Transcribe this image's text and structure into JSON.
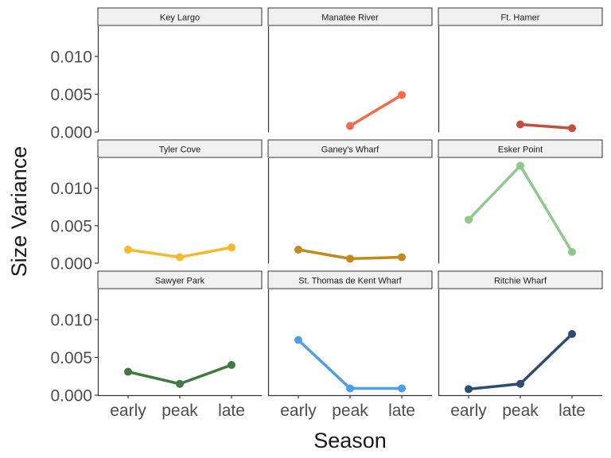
{
  "chart_data": {
    "type": "line",
    "xlabel": "Season",
    "ylabel": "Size Variance",
    "categories": [
      "early",
      "peak",
      "late"
    ],
    "ylim": [
      0,
      0.014
    ],
    "yticks": [
      0.0,
      0.005,
      0.01
    ],
    "ytick_labels": [
      "0.000",
      "0.005",
      "0.010"
    ],
    "grid": false,
    "legend": "none",
    "facets": [
      {
        "name": "Key Largo",
        "color": "#7f7f7f",
        "values": [
          null,
          null,
          null
        ]
      },
      {
        "name": "Manatee River",
        "color": "#f26b4a",
        "values": [
          null,
          0.0008,
          0.0049
        ]
      },
      {
        "name": "Ft. Hamer",
        "color": "#c44e3c",
        "values": [
          null,
          0.001,
          0.0005
        ]
      },
      {
        "name": "Tyler Cove",
        "color": "#f5b82e",
        "values": [
          0.0018,
          0.0008,
          0.0021
        ]
      },
      {
        "name": "Ganey's Wharf",
        "color": "#c18a1c",
        "values": [
          0.0018,
          0.0006,
          0.0008
        ]
      },
      {
        "name": "Esker Point",
        "color": "#8ec98a",
        "values": [
          0.0058,
          0.013,
          0.0015
        ]
      },
      {
        "name": "Sawyer Park",
        "color": "#3f7a3e",
        "values": [
          0.0031,
          0.0015,
          0.004
        ]
      },
      {
        "name": "St. Thomas de Kent Wharf",
        "color": "#4f9de6",
        "values": [
          0.0073,
          0.0009,
          0.0009
        ]
      },
      {
        "name": "Ritchie Wharf",
        "color": "#2c4c74",
        "values": [
          0.0008,
          0.0015,
          0.0081
        ]
      }
    ]
  }
}
